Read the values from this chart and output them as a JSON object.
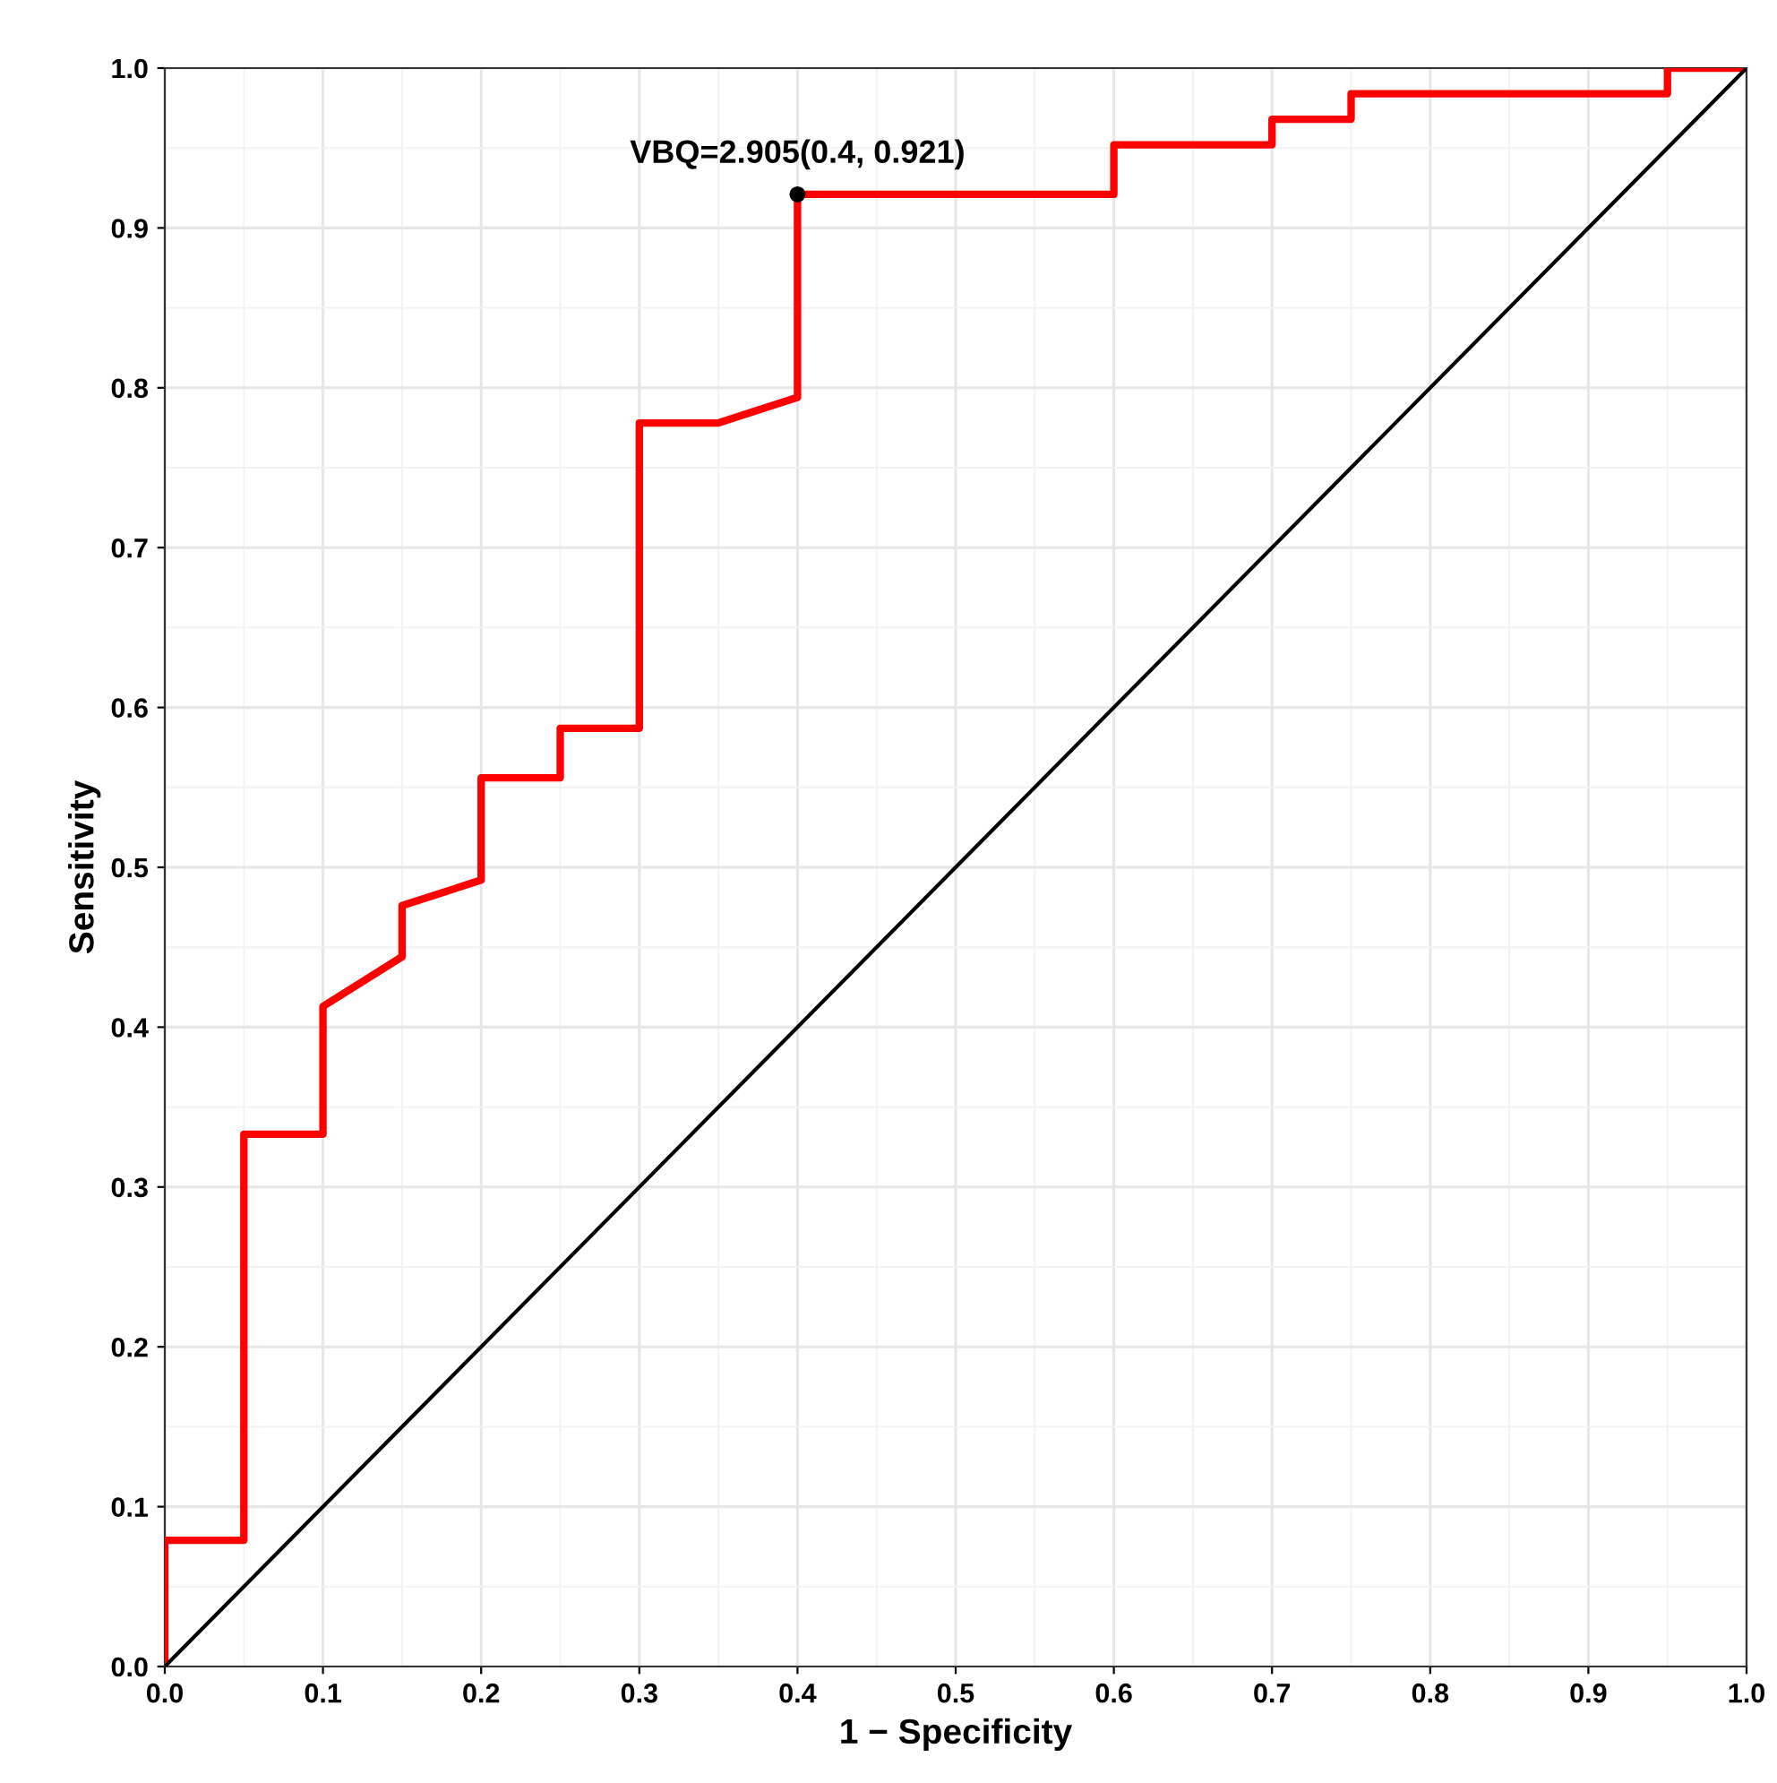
{
  "chart_data": {
    "type": "line",
    "xlabel": "1 − Specificity",
    "ylabel": "Sensitivity",
    "xlim": [
      0,
      1
    ],
    "ylim": [
      0,
      1
    ],
    "xticks": [
      {
        "value": 0,
        "label": "0.0"
      },
      0.1,
      0.2,
      0.3,
      0.4,
      0.5,
      0.6,
      0.7,
      0.8,
      0.9,
      {
        "value": 1,
        "label": "1.0"
      }
    ],
    "yticks": [
      {
        "value": 0,
        "label": "0.0"
      },
      0.1,
      0.2,
      0.3,
      0.4,
      0.5,
      0.6,
      0.7,
      0.8,
      0.9,
      {
        "value": 1,
        "label": "1.0"
      }
    ],
    "grid": true,
    "series": [
      {
        "color": "#ff0000",
        "x": [
          0,
          0,
          0.05,
          0.05,
          0.1,
          0.1,
          0.15,
          0.15,
          0.2,
          0.2,
          0.25,
          0.25,
          0.3,
          0.3,
          0.35,
          0.4,
          0.4,
          0.6,
          0.6,
          0.7,
          0.7,
          0.75,
          0.75,
          0.95,
          0.95,
          1.0
        ],
        "values": [
          0,
          0.079,
          0.079,
          0.333,
          0.333,
          0.413,
          0.444,
          0.476,
          0.492,
          0.556,
          0.556,
          0.587,
          0.587,
          0.778,
          0.778,
          0.794,
          0.921,
          0.921,
          0.952,
          0.952,
          0.968,
          0.968,
          0.984,
          0.984,
          1.0,
          1.0
        ]
      },
      {
        "color": "#000000",
        "x": [
          0,
          1
        ],
        "values": [
          0,
          1
        ]
      },
      {
        "type": "scatter",
        "color": "#000000",
        "x": [
          0.4
        ],
        "values": [
          0.921
        ]
      }
    ],
    "annotations": [
      {
        "text": "VBQ=2.905(0.4, 0.921)",
        "x": 0.4,
        "y": 0.921
      }
    ]
  }
}
